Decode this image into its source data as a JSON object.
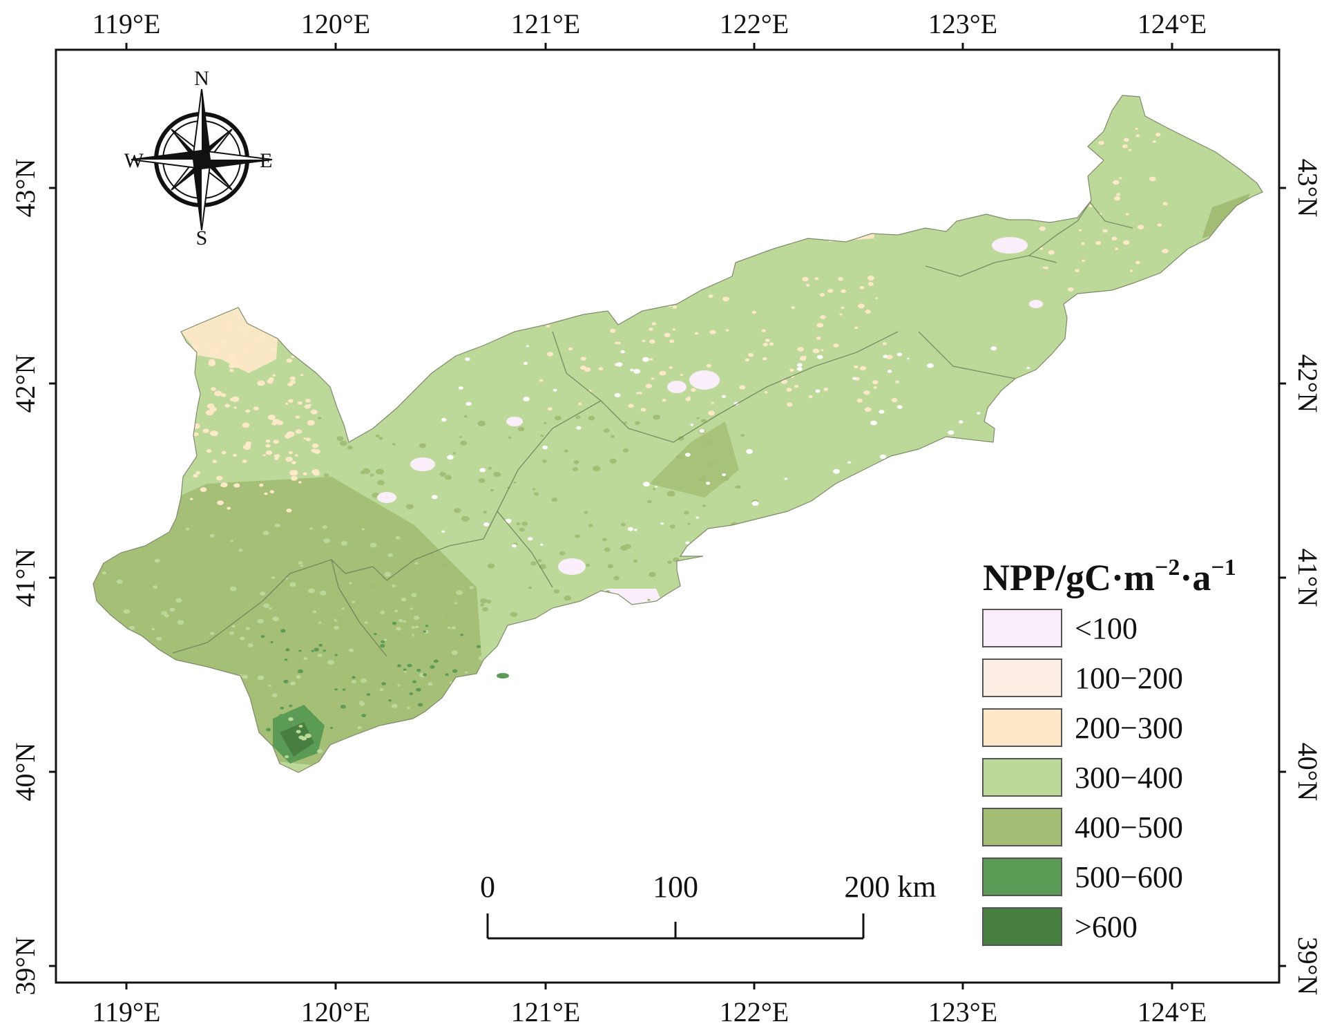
{
  "axes": {
    "lon_labels": [
      "119°E",
      "120°E",
      "121°E",
      "122°E",
      "123°E",
      "124°E"
    ],
    "lat_labels": [
      "43°N",
      "42°N",
      "41°N",
      "40°N",
      "39°N"
    ]
  },
  "compass": {
    "north": "N",
    "south": "S",
    "east": "E",
    "west": "W"
  },
  "legend": {
    "title_main": "NPP/gC·m",
    "title_exp1": "−2",
    "title_mid": "·a",
    "title_exp2": "−1",
    "classes": [
      {
        "label": "<100",
        "color": "#fbeefb"
      },
      {
        "label": "100−200",
        "color": "#fceee4"
      },
      {
        "label": "200−300",
        "color": "#fde8c8"
      },
      {
        "label": "300−400",
        "color": "#bcd99a"
      },
      {
        "label": "400−500",
        "color": "#a4bd74"
      },
      {
        "label": "500−600",
        "color": "#5b9b55"
      },
      {
        "label": ">600",
        "color": "#477f40"
      }
    ]
  },
  "scale_bar": {
    "labels": [
      "0",
      "100",
      "200 km"
    ]
  },
  "colors": {
    "land_base": "#bcd99a",
    "land_dark": "#a4bd74",
    "forest": "#5b9b55",
    "forest_dark": "#477f40",
    "sparse": "#fde8c8",
    "bare": "#fbeefb",
    "boundary": "#6a7a5a"
  }
}
